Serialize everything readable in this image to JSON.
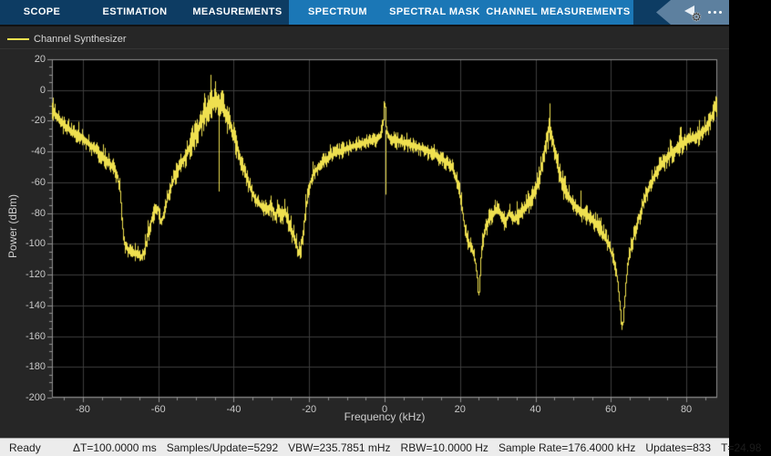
{
  "toolbar": {
    "tabs": [
      {
        "label": "SCOPE",
        "active": false,
        "width": 92
      },
      {
        "label": "ESTIMATION",
        "active": false,
        "width": 112
      },
      {
        "label": "MEASUREMENTS",
        "active": false,
        "width": 113
      },
      {
        "label": "SPECTRUM",
        "active": true,
        "width": 107
      },
      {
        "label": "SPECTRAL MASK",
        "active": true,
        "width": 106
      },
      {
        "label": "CHANNEL MEASUREMENTS",
        "active": true,
        "width": 165
      }
    ],
    "colors": {
      "bar": "#0D3C63",
      "active_section": "#1B77B6",
      "badge": "#5D809F"
    },
    "icons": [
      "cursor-gear-icon",
      "more-options-ellipsis"
    ]
  },
  "legend": {
    "label": "Channel Synthesizer",
    "line_color": "#EFE04F"
  },
  "statusbar": {
    "state": "Ready",
    "items": [
      "ΔT=100.0000 ms",
      "Samples/Update=5292",
      "VBW=235.7851 mHz",
      "RBW=10.0000 Hz",
      "Sample Rate=176.4000 kHz",
      "Updates=833",
      "T=24.98"
    ]
  },
  "chart_data": {
    "type": "line",
    "title": "",
    "xlabel": "Frequency (kHz)",
    "ylabel": "Power (dBm)",
    "xlim": [
      -88.2,
      88.2
    ],
    "ylim": [
      -200,
      20
    ],
    "xticks": [
      -80,
      -60,
      -40,
      -20,
      0,
      20,
      40,
      60,
      80
    ],
    "yticks": [
      20,
      0,
      -20,
      -40,
      -60,
      -80,
      -100,
      -120,
      -140,
      -160,
      -180,
      -200
    ],
    "minor_tick_step": 5,
    "grid": true,
    "background": "#000000",
    "grid_color": "#3d3d3d",
    "axis_color": "#909090",
    "legend_position": "top-left",
    "series": [
      {
        "name": "Channel Synthesizer",
        "color": "#EFE04F",
        "envelope_note": "points are [frequency_kHz, mean_power_dBm, noise_halfband_dB]",
        "envelope": [
          [
            -88.2,
            -13,
            8
          ],
          [
            -87,
            -17,
            8
          ],
          [
            -85,
            -23,
            7
          ],
          [
            -83,
            -27,
            7
          ],
          [
            -80,
            -31,
            7
          ],
          [
            -78,
            -36,
            7
          ],
          [
            -76,
            -40,
            7
          ],
          [
            -74,
            -45,
            7
          ],
          [
            -72,
            -50,
            7
          ],
          [
            -71,
            -55,
            7
          ],
          [
            -70.2,
            -63,
            7
          ],
          [
            -69.4,
            -90,
            8
          ],
          [
            -68.8,
            -101,
            7
          ],
          [
            -68,
            -104,
            6
          ],
          [
            -66,
            -106,
            6
          ],
          [
            -64.5,
            -109,
            6
          ],
          [
            -63.5,
            -104,
            7
          ],
          [
            -62.5,
            -91,
            8
          ],
          [
            -61,
            -78,
            7
          ],
          [
            -60,
            -77,
            7
          ],
          [
            -59.2,
            -87,
            6
          ],
          [
            -58.4,
            -79,
            6
          ],
          [
            -57.5,
            -70,
            7
          ],
          [
            -56.5,
            -62,
            7
          ],
          [
            -55.5,
            -55,
            8
          ],
          [
            -54,
            -48,
            8
          ],
          [
            -52.5,
            -42,
            9
          ],
          [
            -51,
            -33,
            10
          ],
          [
            -49.5,
            -26,
            10
          ],
          [
            -48.5,
            -20,
            11
          ],
          [
            -47.5,
            -15,
            12
          ],
          [
            -46.5,
            -11,
            12
          ],
          [
            -45.5,
            -8,
            13
          ],
          [
            -44.5,
            -7,
            13
          ],
          [
            -43.8,
            -9,
            13
          ],
          [
            -43,
            -11,
            12
          ],
          [
            -42,
            -16,
            12
          ],
          [
            -41,
            -22,
            11
          ],
          [
            -40,
            -30,
            10
          ],
          [
            -39,
            -38,
            9
          ],
          [
            -38,
            -46,
            8
          ],
          [
            -37,
            -54,
            8
          ],
          [
            -36,
            -61,
            7
          ],
          [
            -35,
            -67,
            7
          ],
          [
            -34,
            -72,
            7
          ],
          [
            -32.5,
            -76,
            7
          ],
          [
            -31,
            -78,
            8
          ],
          [
            -30,
            -75,
            8
          ],
          [
            -29,
            -82,
            8
          ],
          [
            -28,
            -76,
            8
          ],
          [
            -27.2,
            -83,
            8
          ],
          [
            -26.5,
            -78,
            8
          ],
          [
            -25.5,
            -86,
            8
          ],
          [
            -24.5,
            -92,
            8
          ],
          [
            -23.5,
            -99,
            8
          ],
          [
            -22.8,
            -106,
            7
          ],
          [
            -22.2,
            -103,
            8
          ],
          [
            -21.6,
            -93,
            8
          ],
          [
            -21,
            -80,
            8
          ],
          [
            -20.3,
            -68,
            8
          ],
          [
            -19.5,
            -59,
            7
          ],
          [
            -18.5,
            -53,
            6
          ],
          [
            -17,
            -48,
            6
          ],
          [
            -15,
            -44,
            6
          ],
          [
            -13,
            -41,
            6
          ],
          [
            -11,
            -39,
            6
          ],
          [
            -9,
            -37,
            6
          ],
          [
            -7,
            -35.5,
            6
          ],
          [
            -5,
            -34,
            6
          ],
          [
            -3,
            -32.5,
            6
          ],
          [
            -1.5,
            -31,
            6
          ],
          [
            -0.8,
            -29,
            7
          ],
          [
            -0.4,
            -23,
            8
          ],
          [
            -0.15,
            -11,
            6
          ],
          [
            0,
            -6,
            4
          ],
          [
            0.15,
            -11,
            6
          ],
          [
            0.4,
            -23,
            8
          ],
          [
            0.8,
            -29,
            7
          ],
          [
            1.5,
            -31,
            6
          ],
          [
            3,
            -32.5,
            6
          ],
          [
            5,
            -34,
            6
          ],
          [
            7,
            -35.5,
            6
          ],
          [
            9,
            -37,
            6
          ],
          [
            11,
            -39,
            6
          ],
          [
            13,
            -41.5,
            6
          ],
          [
            15,
            -44.5,
            6
          ],
          [
            16.5,
            -47,
            6
          ],
          [
            18,
            -51,
            7
          ],
          [
            19,
            -57,
            7
          ],
          [
            19.8,
            -65,
            8
          ],
          [
            20.5,
            -75,
            8
          ],
          [
            21.2,
            -88,
            8
          ],
          [
            22,
            -97,
            7
          ],
          [
            23,
            -103,
            7
          ],
          [
            23.8,
            -108,
            6
          ],
          [
            24.5,
            -118,
            6
          ],
          [
            24.9,
            -137,
            4
          ],
          [
            25.3,
            -120,
            7
          ],
          [
            25.8,
            -103,
            8
          ],
          [
            26.5,
            -92,
            8
          ],
          [
            27.5,
            -85,
            8
          ],
          [
            29,
            -80,
            8
          ],
          [
            30,
            -77,
            8
          ],
          [
            31,
            -82,
            8
          ],
          [
            32,
            -86,
            8
          ],
          [
            33,
            -80,
            8
          ],
          [
            34.5,
            -84,
            8
          ],
          [
            36,
            -80,
            8
          ],
          [
            37.5,
            -76,
            9
          ],
          [
            39,
            -70,
            9
          ],
          [
            40.5,
            -62,
            10
          ],
          [
            41.5,
            -52,
            11
          ],
          [
            42.3,
            -42,
            12
          ],
          [
            43,
            -32,
            13
          ],
          [
            43.6,
            -24,
            13
          ],
          [
            44.2,
            -28,
            13
          ],
          [
            45,
            -38,
            12
          ],
          [
            45.8,
            -48,
            11
          ],
          [
            46.8,
            -58,
            10
          ],
          [
            48,
            -66,
            9
          ],
          [
            49.5,
            -72,
            9
          ],
          [
            51,
            -77,
            8
          ],
          [
            53,
            -80,
            8
          ],
          [
            55,
            -84,
            8
          ],
          [
            56.5,
            -88,
            8
          ],
          [
            58,
            -94,
            7
          ],
          [
            59.5,
            -101,
            7
          ],
          [
            60.5,
            -108,
            7
          ],
          [
            61.3,
            -116,
            6
          ],
          [
            62,
            -128,
            5
          ],
          [
            62.7,
            -148,
            5
          ],
          [
            63.1,
            -155,
            4
          ],
          [
            63.6,
            -138,
            5
          ],
          [
            64.2,
            -120,
            6
          ],
          [
            65,
            -106,
            7
          ],
          [
            66,
            -96,
            7
          ],
          [
            66.8,
            -90,
            7
          ],
          [
            67.6,
            -82,
            7
          ],
          [
            68.5,
            -74,
            7
          ],
          [
            70,
            -64,
            8
          ],
          [
            71.5,
            -56,
            8
          ],
          [
            73,
            -50,
            8
          ],
          [
            74.5,
            -45,
            8
          ],
          [
            76,
            -41,
            8
          ],
          [
            78,
            -37,
            8
          ],
          [
            80,
            -33,
            8
          ],
          [
            82,
            -31,
            8
          ],
          [
            84,
            -28,
            8
          ],
          [
            85.5,
            -24,
            8
          ],
          [
            86.5,
            -19,
            8
          ],
          [
            87.5,
            -12,
            8
          ],
          [
            88.2,
            -8,
            7
          ]
        ],
        "spikes": [
          {
            "f": -43.9,
            "top": -12,
            "bottom": -66
          },
          {
            "f": 0.35,
            "top": -26,
            "bottom": -68
          }
        ]
      }
    ]
  }
}
